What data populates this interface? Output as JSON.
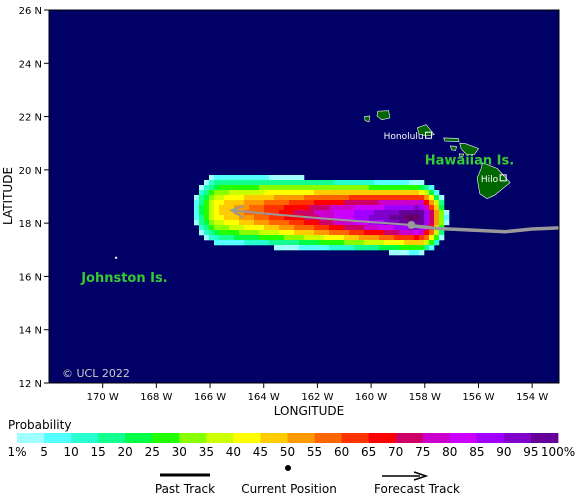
{
  "map": {
    "ocean_color": "#000066",
    "land_color": "#006600",
    "land_border_color": "#ffffff",
    "lon_range": [
      -172,
      -153
    ],
    "lat_range": [
      12,
      26
    ],
    "lon_ticks": [
      -170,
      -168,
      -166,
      -164,
      -162,
      -160,
      -158,
      -156,
      -154
    ],
    "lon_tick_labels": [
      "170 W",
      "168 W",
      "166 W",
      "164 W",
      "162 W",
      "160 W",
      "158 W",
      "156 W",
      "154 W"
    ],
    "lat_ticks": [
      12,
      14,
      16,
      18,
      20,
      22,
      24,
      26
    ],
    "lat_tick_labels": [
      "12 N",
      "14 N",
      "16 N",
      "18 N",
      "20 N",
      "22 N",
      "24 N",
      "26 N"
    ],
    "xlabel": "LONGITUDE",
    "ylabel": "LATITUDE",
    "copyright": "© UCL 2022",
    "region_labels": [
      {
        "text": "Hawaiian Is.",
        "lon": -158.0,
        "lat": 20.2,
        "color": "#33cc33"
      },
      {
        "text": "Johnston Is.",
        "lon": -170.8,
        "lat": 15.8,
        "color": "#33cc33"
      }
    ],
    "cities": [
      {
        "name": "Honolulu",
        "lon": -157.86,
        "lat": 21.3
      },
      {
        "name": "Hilo",
        "lon": -155.08,
        "lat": 19.7
      }
    ],
    "islands": [
      {
        "name": "Niihau",
        "pts": [
          [
            -160.25,
            22.0
          ],
          [
            -160.05,
            22.02
          ],
          [
            -160.08,
            21.8
          ],
          [
            -160.22,
            21.85
          ]
        ]
      },
      {
        "name": "Kauai",
        "pts": [
          [
            -159.75,
            22.2
          ],
          [
            -159.35,
            22.22
          ],
          [
            -159.3,
            21.95
          ],
          [
            -159.6,
            21.88
          ],
          [
            -159.78,
            22.02
          ]
        ]
      },
      {
        "name": "Oahu",
        "pts": [
          [
            -158.28,
            21.58
          ],
          [
            -157.95,
            21.7
          ],
          [
            -157.65,
            21.32
          ],
          [
            -157.95,
            21.27
          ],
          [
            -158.22,
            21.35
          ]
        ]
      },
      {
        "name": "Molokai",
        "pts": [
          [
            -157.3,
            21.2
          ],
          [
            -156.75,
            21.18
          ],
          [
            -156.72,
            21.06
          ],
          [
            -157.25,
            21.08
          ]
        ]
      },
      {
        "name": "Lanai",
        "pts": [
          [
            -157.05,
            20.9
          ],
          [
            -156.82,
            20.88
          ],
          [
            -156.85,
            20.73
          ],
          [
            -157.0,
            20.75
          ]
        ]
      },
      {
        "name": "Maui",
        "pts": [
          [
            -156.7,
            21.0
          ],
          [
            -156.48,
            20.98
          ],
          [
            -156.0,
            20.8
          ],
          [
            -156.15,
            20.58
          ],
          [
            -156.45,
            20.58
          ],
          [
            -156.65,
            20.8
          ]
        ]
      },
      {
        "name": "Kahoolawe",
        "pts": [
          [
            -156.72,
            20.6
          ],
          [
            -156.55,
            20.6
          ],
          [
            -156.58,
            20.5
          ],
          [
            -156.7,
            20.5
          ]
        ]
      },
      {
        "name": "Hawaii",
        "pts": [
          [
            -155.85,
            20.27
          ],
          [
            -155.3,
            20.05
          ],
          [
            -154.82,
            19.52
          ],
          [
            -155.4,
            19.05
          ],
          [
            -155.68,
            18.92
          ],
          [
            -155.95,
            19.1
          ],
          [
            -156.05,
            19.7
          ],
          [
            -155.9,
            20.05
          ]
        ]
      }
    ],
    "past_track": [
      [
        -158.5,
        17.9
      ],
      [
        -157.5,
        17.8
      ],
      [
        -156.5,
        17.75
      ],
      [
        -155.0,
        17.68
      ],
      [
        -154.0,
        17.78
      ],
      [
        -153.0,
        17.82
      ]
    ],
    "forecast_track": [
      [
        -158.5,
        17.93
      ],
      [
        -161.5,
        18.15
      ],
      [
        -163.5,
        18.32
      ],
      [
        -165.2,
        18.48
      ]
    ],
    "current_position": [
      -158.5,
      17.93
    ],
    "track_color": "#999999"
  },
  "probability_field": {
    "head": [
      -165.5,
      18.5
    ],
    "tail": [
      -158.3,
      18.2
    ],
    "radius": [
      1.15,
      1.35
    ],
    "intensity_core": 0.98,
    "intensity_head": 0.45
  },
  "legend": {
    "title": "Probability",
    "colors": [
      "#a0ffff",
      "#54ffff",
      "#27ffd0",
      "#13ff90",
      "#00ff44",
      "#22ff00",
      "#88ff00",
      "#ccff00",
      "#ffff00",
      "#ffcc00",
      "#ff9900",
      "#ff6600",
      "#ff3300",
      "#ff0000",
      "#cc0066",
      "#cc00cc",
      "#cc00ff",
      "#a000ff",
      "#8000cc",
      "#660099",
      "#660066"
    ],
    "labels": [
      "1%",
      "5",
      "10",
      "15",
      "20",
      "25",
      "30",
      "35",
      "40",
      "45",
      "50",
      "55",
      "60",
      "65",
      "70",
      "75",
      "80",
      "85",
      "90",
      "95",
      "100%"
    ]
  },
  "track_legend": {
    "past": "Past Track",
    "current": "Current Position",
    "forecast": "Forecast Track"
  }
}
